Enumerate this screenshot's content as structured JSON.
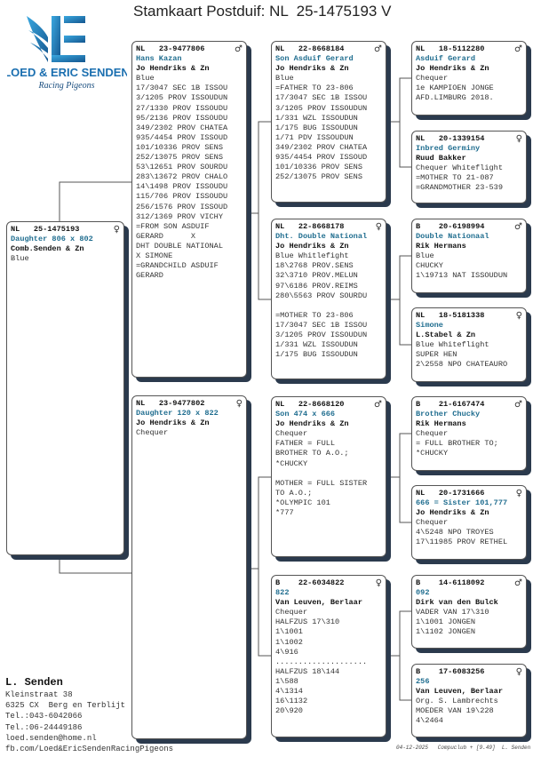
{
  "title": "Stamkaart Postduif: NL  25-1475193 V",
  "logo": {
    "text": "LOED & ERIC SENDEN",
    "script": "Racing Pigeons",
    "color": "#1b7fc1"
  },
  "colors": {
    "name": "#1f6d8f",
    "shadow": "#2b3a4d"
  },
  "birds": [
    {
      "id": "subject",
      "country": "NL",
      "ring": "25-1475193",
      "sex": "♀",
      "name": "Daughter 806 x 802",
      "breeder": "Comb.Senden & Zn",
      "lines": [
        "Blue"
      ]
    },
    {
      "id": "sire",
      "country": "NL",
      "ring": "23-9477806",
      "sex": "♂",
      "name": "Hans Kazan",
      "breeder": "Jo Hendriks & Zn",
      "lines": [
        "Blue",
        "17/3047 SEC 1B ISSOU",
        "3/1205 PROV ISSOUDUN",
        "27/1330 PROV ISSOUDU",
        "95/2136 PROV ISSOUDU",
        "349/2302 PROV CHATEA",
        "935/4454 PROV ISSOUD",
        "101/10336 PROV SENS",
        "252/13075 PROV SENS",
        "53\\12651 PROV SOURDU",
        "283\\13672 PROV CHALO",
        "14\\1498 PROV ISSOUDU",
        "115/706 PROV ISSOUDU",
        "256/1576 PROV ISSOUD",
        "312/1369 PROV VICHY",
        "=FROM SON ASDUIF",
        "GERARD      X",
        "DHT DOUBLE NATIONAL",
        "X SIMONE",
        "=GRANDCHILD ASDUIF",
        "GERARD"
      ]
    },
    {
      "id": "dam",
      "country": "NL",
      "ring": "23-9477802",
      "sex": "♀",
      "name": "Daughter 120 x 822",
      "breeder": "Jo Hendriks & Zn",
      "lines": [
        "Chequer"
      ]
    },
    {
      "id": "ss",
      "country": "NL",
      "ring": "22-8668184",
      "sex": "♂",
      "name": "Son Asduif Gerard",
      "breeder": "Jo Hendriks & Zn",
      "lines": [
        "Blue",
        "=FATHER TO 23-806",
        "17/3047 SEC 1B ISSOU",
        "3/1205 PROV ISSOUDUN",
        "1/331 WZL ISSOUDUN",
        "1/175 BUG ISSOUDUN",
        "1/71 PDV ISSOUDUN",
        "349/2302 PROV CHATEA",
        "935/4454 PROV ISSOUD",
        "101/10336 PROV SENS",
        "252/13075 PROV SENS"
      ]
    },
    {
      "id": "sd",
      "country": "NL",
      "ring": "22-8668178",
      "sex": "♀",
      "name": "Dht. Double National",
      "breeder": "Jo Hendriks & Zn",
      "lines": [
        "Blue Whitlefight",
        "18\\2768 PROV.SENS",
        "32\\3710 PROV.MELUN",
        "97\\6186 PROV.REIMS",
        "280\\5563 PROV SOURDU",
        "",
        "=MOTHER TO 23-806",
        "17/3047 SEC 1B ISSOU",
        "3/1205 PROV ISSOUDUN",
        "1/331 WZL ISSOUDUN",
        "1/175 BUG ISSOUDUN"
      ]
    },
    {
      "id": "ds",
      "country": "NL",
      "ring": "22-8668120",
      "sex": "♂",
      "name": "Son 474 x 666",
      "breeder": "Jo Hendriks & Zn",
      "lines": [
        "Chequer",
        "FATHER = FULL",
        "BROTHER TO A.O.;",
        "*CHUCKY",
        "",
        "MOTHER = FULL SISTER",
        "TO A.O.;",
        "*OLYMPIC 101",
        "*777"
      ]
    },
    {
      "id": "dd",
      "country": "B",
      "ring": "22-6034822",
      "sex": "♀",
      "name": "822",
      "breeder": "Van Leuven, Berlaar",
      "lines": [
        "Chequer",
        "HALFZUS 17\\310",
        "1\\1001",
        "1\\1002",
        "4\\916",
        "....................",
        "HALFZUS 18\\144",
        "1\\588",
        "4\\1314",
        "16\\1132",
        "20\\920"
      ]
    },
    {
      "id": "sss",
      "country": "NL",
      "ring": "18-5112280",
      "sex": "♂",
      "name": "Asduif Gerard",
      "breeder": "Jo Hendriks & Zn",
      "lines": [
        "Chequer",
        "1e KAMPIOEN JONGE",
        "AFD.LIMBURG 2018."
      ]
    },
    {
      "id": "ssd",
      "country": "NL",
      "ring": "20-1339154",
      "sex": "♀",
      "name": "Inbred Germiny",
      "breeder": "Ruud Bakker",
      "lines": [
        "Chequer Whiteflight",
        "=MOTHER TO 21-087",
        "=GRANDMOTHER 23-539"
      ]
    },
    {
      "id": "sds",
      "country": "B",
      "ring": "20-6198994",
      "sex": "♂",
      "name": "Double Nationaal",
      "breeder": "Rik Hermans",
      "lines": [
        "Blue",
        "CHUCKY",
        "1\\19713 NAT ISSOUDUN"
      ]
    },
    {
      "id": "sdd",
      "country": "NL",
      "ring": "18-5181338",
      "sex": "♀",
      "name": "Simone",
      "breeder": "L.Stabel & Zn",
      "lines": [
        "Blue Whiteflight",
        "SUPER HEN",
        "2\\2558 NPO CHATEAURO"
      ]
    },
    {
      "id": "dss",
      "country": "B",
      "ring": "21-6167474",
      "sex": "♂",
      "name": "Brother Chucky",
      "breeder": "Rik Hermans",
      "lines": [
        "Chequer",
        "= FULL BROTHER TO;",
        "*CHUCKY"
      ]
    },
    {
      "id": "dsd",
      "country": "NL",
      "ring": "20-1731666",
      "sex": "♀",
      "name": "666 = Sister 101,777",
      "breeder": "Jo Hendriks & Zn",
      "lines": [
        "Chequer",
        "4\\5248 NPO TROYES",
        "17\\11985 PROV RETHEL"
      ]
    },
    {
      "id": "dds",
      "country": "B",
      "ring": "14-6118092",
      "sex": "♂",
      "name": "092",
      "breeder": "Dirk van den Bulck",
      "lines": [
        "VADER VAN 17\\310",
        "1\\1001 JONGEN",
        "1\\1102 JONGEN"
      ]
    },
    {
      "id": "ddd",
      "country": "B",
      "ring": "17-6083256",
      "sex": "♀",
      "name": "256",
      "breeder": "Van Leuven, Berlaar",
      "lines": [
        "Org. S. Lambrechts",
        "MOEDER VAN 19\\228",
        "4\\2464"
      ]
    }
  ],
  "owner": {
    "name": "L. Senden",
    "lines": [
      "Kleinstraat 38",
      "6325 CX  Berg en Terblijt",
      "Tel.:043-6042066",
      "Tel.:06-24449186",
      "loed.senden@home.nl",
      "fb.com/Loed&EricSendenRacingPigeons"
    ]
  },
  "footer": "04-12-2025   Compuclub + [9.49]  L. Senden"
}
